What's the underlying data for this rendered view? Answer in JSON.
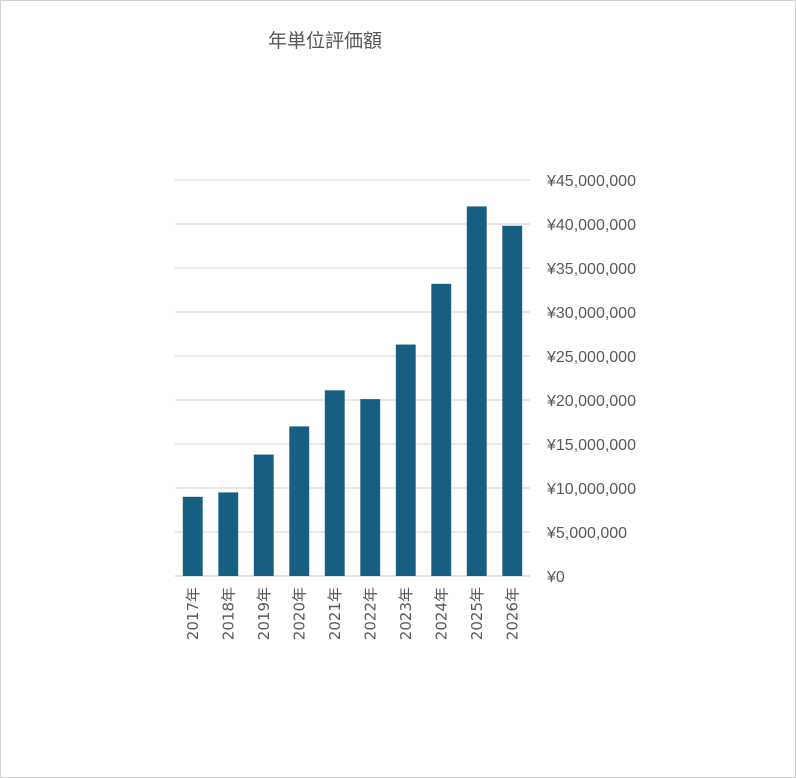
{
  "chart_data": {
    "type": "bar",
    "title": "年単位評価額",
    "categories": [
      "2017年",
      "2018年",
      "2019年",
      "2020年",
      "2021年",
      "2022年",
      "2023年",
      "2024年",
      "2025年",
      "2026年"
    ],
    "series": [
      {
        "values": [
          9000000,
          9500000,
          13800000,
          17000000,
          21100000,
          20100000,
          26300000,
          33200000,
          42000000,
          39800000
        ]
      }
    ],
    "ylim": [
      0,
      45000000
    ],
    "y_ticks": [
      "¥0",
      "¥5,000,000",
      "¥10,000,000",
      "¥15,000,000",
      "¥20,000,000",
      "¥25,000,000",
      "¥30,000,000",
      "¥35,000,000",
      "¥40,000,000",
      "¥45,000,000"
    ],
    "y_axis_position": "right",
    "grid": true,
    "legend": "none",
    "colors": {
      "bar": "#175f80",
      "grid": "#d9d9d9",
      "text": "#595959"
    }
  }
}
